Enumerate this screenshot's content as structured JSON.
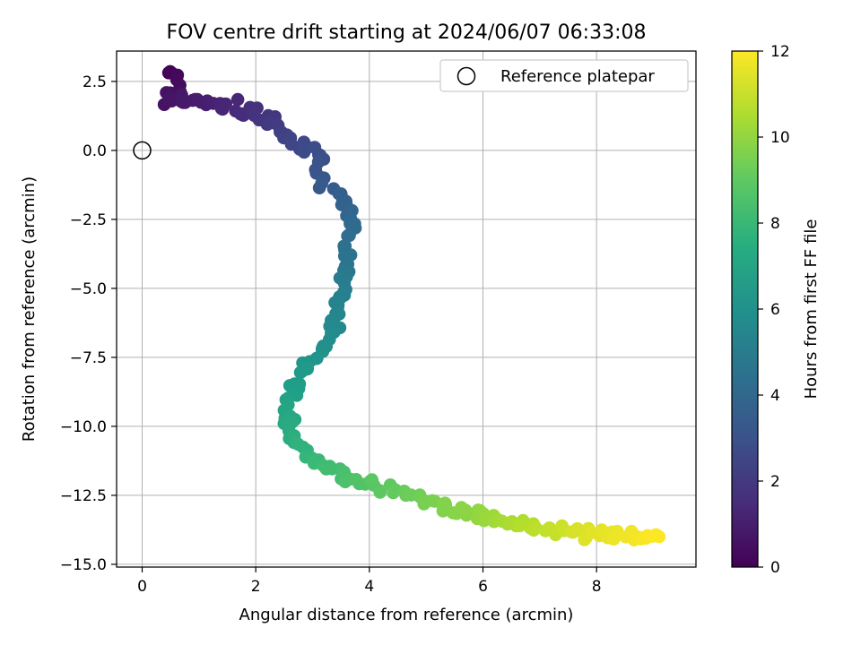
{
  "chart_data": {
    "type": "scatter",
    "title": "FOV centre drift starting at 2024/06/07 06:33:08",
    "xlabel": "Angular distance from reference (arcmin)",
    "ylabel": "Rotation from reference (arcmin)",
    "xlim": [
      -0.45,
      9.75
    ],
    "ylim": [
      -15.1,
      3.6
    ],
    "x_ticks": [
      0,
      2,
      4,
      6,
      8
    ],
    "y_ticks": [
      2.5,
      0.0,
      -2.5,
      -5.0,
      -7.5,
      -10.0,
      -12.5,
      -15.0
    ],
    "x_tick_labels": [
      "0",
      "2",
      "4",
      "6",
      "8"
    ],
    "y_tick_labels": [
      "2.5",
      "0.0",
      "−2.5",
      "−5.0",
      "−7.5",
      "−10.0",
      "−12.5",
      "−15.0"
    ],
    "grid": true,
    "legend": {
      "label": "Reference platepar",
      "position": "top-right"
    },
    "reference_point": {
      "x": 0.0,
      "y": 0.0
    },
    "colorbar": {
      "label": "Hours from first FF file",
      "min": 0,
      "max": 12,
      "ticks": [
        0,
        2,
        4,
        6,
        8,
        10,
        12
      ],
      "tick_labels": [
        "0",
        "2",
        "4",
        "6",
        "8",
        "10",
        "12"
      ],
      "colormap": "viridis"
    },
    "path_points": [
      {
        "x": 0.42,
        "y": 2.75,
        "h": 0.0
      },
      {
        "x": 0.62,
        "y": 2.6,
        "h": 0.2
      },
      {
        "x": 0.7,
        "y": 2.2,
        "h": 0.4
      },
      {
        "x": 0.5,
        "y": 2.0,
        "h": 0.5
      },
      {
        "x": 0.4,
        "y": 1.9,
        "h": 0.6
      },
      {
        "x": 1.3,
        "y": 1.65,
        "h": 1.1
      },
      {
        "x": 1.62,
        "y": 1.6,
        "h": 1.3
      },
      {
        "x": 1.72,
        "y": 1.2,
        "h": 1.5
      },
      {
        "x": 2.0,
        "y": 1.45,
        "h": 1.7
      },
      {
        "x": 2.3,
        "y": 1.0,
        "h": 2.0
      },
      {
        "x": 2.5,
        "y": 0.5,
        "h": 2.3
      },
      {
        "x": 2.8,
        "y": 0.15,
        "h": 2.6
      },
      {
        "x": 3.05,
        "y": 0.05,
        "h": 2.8
      },
      {
        "x": 3.15,
        "y": -0.6,
        "h": 3.0
      },
      {
        "x": 3.22,
        "y": -1.3,
        "h": 3.3
      },
      {
        "x": 3.5,
        "y": -1.6,
        "h": 3.6
      },
      {
        "x": 3.7,
        "y": -2.5,
        "h": 4.0
      },
      {
        "x": 3.6,
        "y": -3.5,
        "h": 4.4
      },
      {
        "x": 3.6,
        "y": -4.5,
        "h": 4.9
      },
      {
        "x": 3.5,
        "y": -5.6,
        "h": 5.4
      },
      {
        "x": 3.3,
        "y": -6.7,
        "h": 5.8
      },
      {
        "x": 3.05,
        "y": -7.6,
        "h": 6.2
      },
      {
        "x": 2.7,
        "y": -8.4,
        "h": 6.6
      },
      {
        "x": 2.55,
        "y": -9.3,
        "h": 7.0
      },
      {
        "x": 2.62,
        "y": -10.3,
        "h": 7.4
      },
      {
        "x": 2.9,
        "y": -11.0,
        "h": 7.8
      },
      {
        "x": 3.2,
        "y": -11.4,
        "h": 8.2
      },
      {
        "x": 3.7,
        "y": -11.9,
        "h": 8.6
      },
      {
        "x": 4.3,
        "y": -12.3,
        "h": 9.0
      },
      {
        "x": 4.9,
        "y": -12.6,
        "h": 9.4
      },
      {
        "x": 5.4,
        "y": -12.9,
        "h": 9.7
      },
      {
        "x": 6.0,
        "y": -13.3,
        "h": 10.1
      },
      {
        "x": 6.5,
        "y": -13.5,
        "h": 10.5
      },
      {
        "x": 7.0,
        "y": -13.7,
        "h": 10.8
      },
      {
        "x": 7.5,
        "y": -13.85,
        "h": 11.2
      },
      {
        "x": 8.0,
        "y": -13.9,
        "h": 11.5
      },
      {
        "x": 8.6,
        "y": -13.95,
        "h": 11.8
      },
      {
        "x": 9.1,
        "y": -14.0,
        "h": 12.0
      }
    ]
  }
}
